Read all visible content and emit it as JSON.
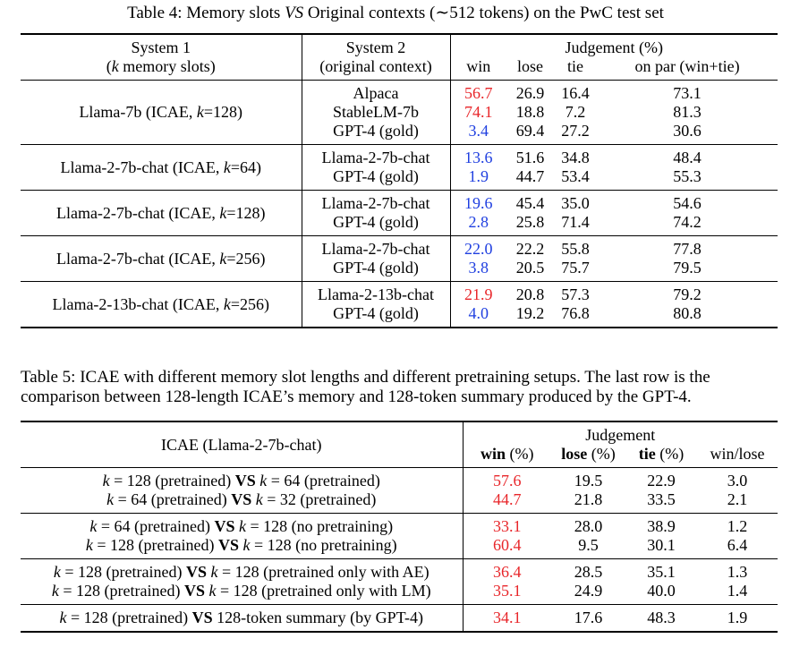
{
  "table4": {
    "caption": "Table 4: Memory slots VS Original contexts (∼512 tokens) on the PwC test set",
    "caption_parts": [
      "Table 4: Memory slots ",
      "VS",
      " Original contexts (∼512 tokens) on the PwC test set"
    ],
    "headers": {
      "system1_line1": "System 1",
      "system1_line2_pre": "(",
      "system1_line2_k": "k",
      "system1_line2_post": " memory slots)",
      "system2_line1": "System 2",
      "system2_line2": "(original context)",
      "judgement": "Judgement (%)",
      "win": "win",
      "lose": "lose",
      "tie": "tie",
      "onpar": "on par (win+tie)"
    },
    "groups": [
      {
        "system1_pre": "Llama-7b (ICAE, ",
        "system1_k": "k",
        "system1_post": "=128)",
        "rows": [
          {
            "system2": "Alpaca",
            "win": "56.7",
            "win_color": "red",
            "lose": "26.9",
            "tie": "16.4",
            "onpar": "73.1"
          },
          {
            "system2": "StableLM-7b",
            "win": "74.1",
            "win_color": "red",
            "lose": "18.8",
            "tie": "7.2",
            "onpar": "81.3"
          },
          {
            "system2": "GPT-4 (gold)",
            "win": "3.4",
            "win_color": "blue",
            "lose": "69.4",
            "tie": "27.2",
            "onpar": "30.6"
          }
        ]
      },
      {
        "system1_pre": "Llama-2-7b-chat (ICAE, ",
        "system1_k": "k",
        "system1_post": "=64)",
        "rows": [
          {
            "system2": "Llama-2-7b-chat",
            "win": "13.6",
            "win_color": "blue",
            "lose": "51.6",
            "tie": "34.8",
            "onpar": "48.4"
          },
          {
            "system2": "GPT-4 (gold)",
            "win": "1.9",
            "win_color": "blue",
            "lose": "44.7",
            "tie": "53.4",
            "onpar": "55.3"
          }
        ]
      },
      {
        "system1_pre": "Llama-2-7b-chat (ICAE, ",
        "system1_k": "k",
        "system1_post": "=128)",
        "rows": [
          {
            "system2": "Llama-2-7b-chat",
            "win": "19.6",
            "win_color": "blue",
            "lose": "45.4",
            "tie": "35.0",
            "onpar": "54.6"
          },
          {
            "system2": "GPT-4 (gold)",
            "win": "2.8",
            "win_color": "blue",
            "lose": "25.8",
            "tie": "71.4",
            "onpar": "74.2"
          }
        ]
      },
      {
        "system1_pre": "Llama-2-7b-chat (ICAE, ",
        "system1_k": "k",
        "system1_post": "=256)",
        "rows": [
          {
            "system2": "Llama-2-7b-chat",
            "win": "22.0",
            "win_color": "blue",
            "lose": "22.2",
            "tie": "55.8",
            "onpar": "77.8"
          },
          {
            "system2": "GPT-4 (gold)",
            "win": "3.8",
            "win_color": "blue",
            "lose": "20.5",
            "tie": "75.7",
            "onpar": "79.5"
          }
        ]
      },
      {
        "system1_pre": "Llama-2-13b-chat (ICAE, ",
        "system1_k": "k",
        "system1_post": "=256)",
        "rows": [
          {
            "system2": "Llama-2-13b-chat",
            "win": "21.9",
            "win_color": "red",
            "lose": "20.8",
            "tie": "57.3",
            "onpar": "79.2"
          },
          {
            "system2": "GPT-4 (gold)",
            "win": "4.0",
            "win_color": "blue",
            "lose": "19.2",
            "tie": "76.8",
            "onpar": "80.8"
          }
        ]
      }
    ]
  },
  "table5": {
    "caption_line1": "Table 5: ICAE with different memory slot lengths and different pretraining setups. The last row is the",
    "caption_line2": "comparison between 128-length ICAE’s memory and 128-token summary produced by the GPT-4.",
    "headers": {
      "icae": "ICAE (Llama-2-7b-chat)",
      "judgement": "Judgement",
      "win": "win (%)",
      "lose": "lose (%)",
      "tie": "tie (%)",
      "winlose": "win/lose"
    },
    "groups": [
      {
        "rows": [
          {
            "left_k": "k",
            "left_val": " = 128 (pretrained) ",
            "vs": "VS",
            "right_k": " k",
            "right_val": " = 64 (pretrained)",
            "win": "57.6",
            "lose": "19.5",
            "tie": "22.9",
            "winlose": "3.0"
          },
          {
            "left_k": "k",
            "left_val": " = 64 (pretrained) ",
            "vs": "VS",
            "right_k": " k",
            "right_val": " = 32 (pretrained)",
            "win": "44.7",
            "lose": "21.8",
            "tie": "33.5",
            "winlose": "2.1"
          }
        ]
      },
      {
        "rows": [
          {
            "left_k": "k",
            "left_val": " = 64 (pretrained) ",
            "vs": "VS",
            "right_k": " k",
            "right_val": " = 128 (no pretraining)",
            "win": "33.1",
            "lose": "28.0",
            "tie": "38.9",
            "winlose": "1.2"
          },
          {
            "left_k": "k",
            "left_val": " = 128 (pretrained) ",
            "vs": "VS",
            "right_k": " k",
            "right_val": " = 128 (no pretraining)",
            "win": "60.4",
            "lose": "9.5",
            "tie": "30.1",
            "winlose": "6.4"
          }
        ]
      },
      {
        "rows": [
          {
            "left_k": "k",
            "left_val": " = 128 (pretrained) ",
            "vs": "VS",
            "right_k": " k",
            "right_val": " = 128 (pretrained only with AE)",
            "win": "36.4",
            "lose": "28.5",
            "tie": "35.1",
            "winlose": "1.3"
          },
          {
            "left_k": "k",
            "left_val": " = 128 (pretrained) ",
            "vs": "VS",
            "right_k": " k",
            "right_val": " = 128 (pretrained only with LM)",
            "win": "35.1",
            "lose": "24.9",
            "tie": "40.0",
            "winlose": "1.4"
          }
        ]
      },
      {
        "rows": [
          {
            "left_k": "k",
            "left_val": " = 128 (pretrained) ",
            "vs": "VS",
            "right_k": "",
            "right_val": " 128-token summary (by GPT-4)",
            "win": "34.1",
            "lose": "17.6",
            "tie": "48.3",
            "winlose": "1.9"
          }
        ]
      }
    ],
    "win_color": "red"
  },
  "colors": {
    "red": "#e8262a",
    "blue": "#1f3fe0",
    "text": "#000000",
    "background": "#ffffff"
  }
}
